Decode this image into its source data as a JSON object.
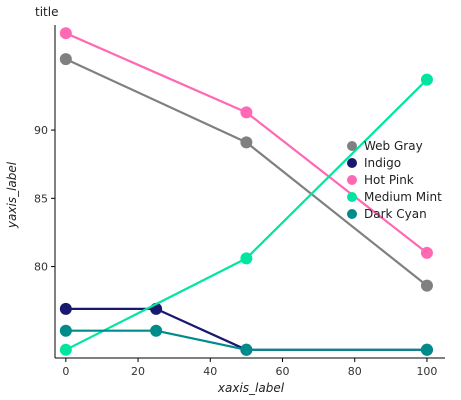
{
  "chart_data": {
    "type": "line",
    "title": "title",
    "xlabel": "xaxis_label",
    "ylabel": "yaxis_label",
    "x": [
      0,
      25,
      50,
      100
    ],
    "xlim": [
      -3,
      105
    ],
    "ylim": [
      73.3,
      97.7
    ],
    "xticks": [
      0,
      20,
      40,
      60,
      80,
      100
    ],
    "yticks": [
      80,
      85,
      90
    ],
    "legend_position": "right",
    "grid": false,
    "series": [
      {
        "name": "Web Gray",
        "color": "#808080",
        "values": [
          95.2,
          null,
          89.1,
          78.6
        ]
      },
      {
        "name": "Indigo",
        "color": "#191970",
        "values": [
          76.9,
          76.9,
          73.9,
          73.9
        ]
      },
      {
        "name": "Hot Pink",
        "color": "#ff69b4",
        "values": [
          97.1,
          null,
          91.3,
          81.0
        ]
      },
      {
        "name": "Medium Mint",
        "color": "#00e5a0",
        "values": [
          73.9,
          null,
          80.6,
          93.7
        ]
      },
      {
        "name": "Dark Cyan",
        "color": "#008b8b",
        "values": [
          75.3,
          75.3,
          73.9,
          73.9
        ]
      }
    ]
  }
}
